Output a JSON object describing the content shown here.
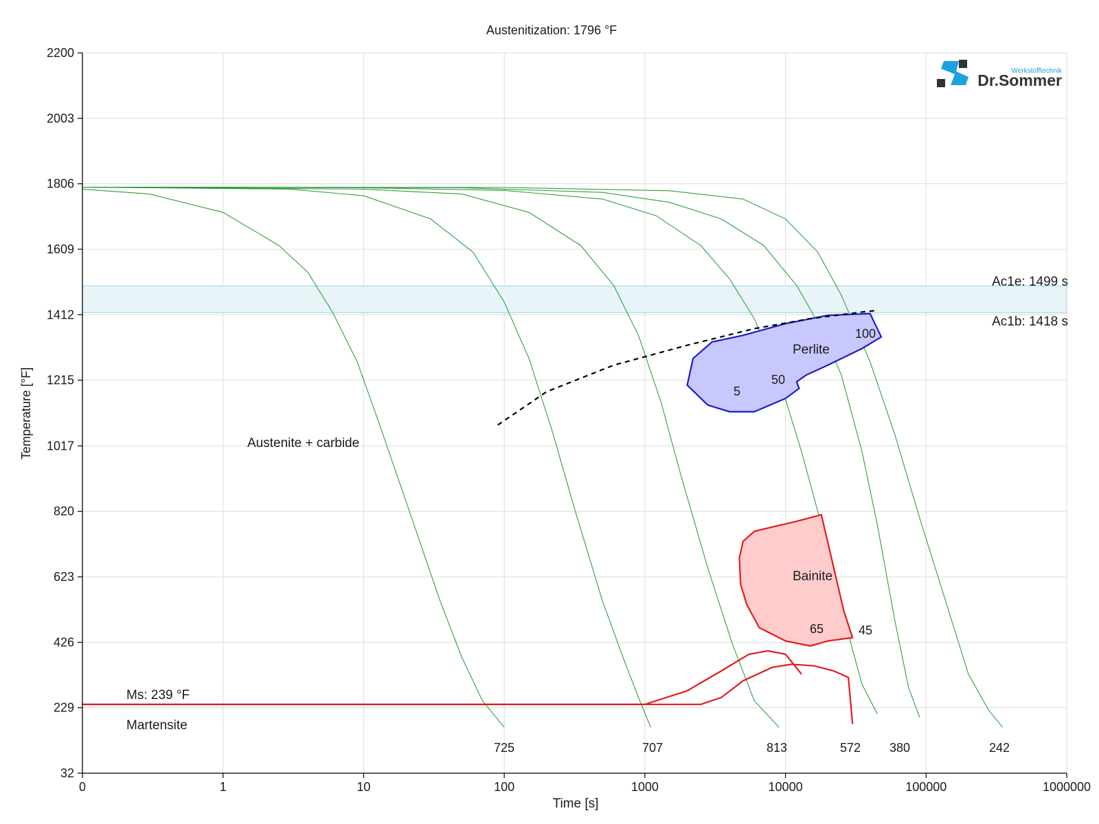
{
  "chart_data": {
    "type": "line",
    "title": "Austenitization: 1796 °F",
    "xlabel": "Time [s]",
    "ylabel": "Temperature [°F]",
    "x_scale": "log",
    "x_ticks": [
      0.1,
      1,
      10,
      100,
      1000,
      10000,
      100000,
      1000000
    ],
    "x_tick_labels": [
      "0",
      "1",
      "10",
      "100",
      "1000",
      "10000",
      "100000",
      "1000000"
    ],
    "y_ticks": [
      32,
      229,
      426,
      623,
      820,
      1017,
      1215,
      1412,
      1609,
      1806,
      2003,
      2200
    ],
    "y_tick_labels": [
      "32",
      "229",
      "426",
      "623",
      "820",
      "1017",
      "1215",
      "1412",
      "1609",
      "1806",
      "2003",
      "2200"
    ],
    "ylim": [
      32,
      2200
    ],
    "grid": true,
    "ac_band": {
      "upper_label": "Ac1e: 1499 s",
      "lower_label": "Ac1b: 1418 s",
      "upper_temp": 1499,
      "lower_temp": 1418,
      "color": "#e8f4f8"
    },
    "ms": {
      "label": "Ms: 239 °F",
      "temp": 239,
      "region_label": "Martensite"
    },
    "region_labels": {
      "austenite": "Austenite + carbide",
      "perlite": "Perlite",
      "bainite": "Bainite"
    },
    "cooling_curves": [
      {
        "end_label": "725",
        "points": [
          [
            0.1,
            1790
          ],
          [
            0.3,
            1775
          ],
          [
            1,
            1720
          ],
          [
            2.5,
            1620
          ],
          [
            4,
            1540
          ],
          [
            6,
            1420
          ],
          [
            9,
            1270
          ],
          [
            13,
            1080
          ],
          [
            20,
            850
          ],
          [
            35,
            550
          ],
          [
            50,
            380
          ],
          [
            70,
            250
          ],
          [
            100,
            170
          ]
        ]
      },
      {
        "end_label": "707",
        "points": [
          [
            0.1,
            1796
          ],
          [
            3,
            1790
          ],
          [
            10,
            1770
          ],
          [
            30,
            1700
          ],
          [
            60,
            1600
          ],
          [
            100,
            1450
          ],
          [
            150,
            1280
          ],
          [
            220,
            1060
          ],
          [
            320,
            820
          ],
          [
            500,
            550
          ],
          [
            700,
            380
          ],
          [
            900,
            260
          ],
          [
            1100,
            170
          ]
        ]
      },
      {
        "end_label": "813",
        "points": [
          [
            0.1,
            1796
          ],
          [
            10,
            1790
          ],
          [
            50,
            1775
          ],
          [
            150,
            1720
          ],
          [
            350,
            1620
          ],
          [
            600,
            1500
          ],
          [
            900,
            1350
          ],
          [
            1300,
            1150
          ],
          [
            1800,
            930
          ],
          [
            2800,
            650
          ],
          [
            4200,
            420
          ],
          [
            6000,
            250
          ],
          [
            9000,
            170
          ]
        ]
      },
      {
        "end_label": "572",
        "points": [
          [
            0.1,
            1796
          ],
          [
            10,
            1794
          ],
          [
            100,
            1786
          ],
          [
            500,
            1760
          ],
          [
            1200,
            1710
          ],
          [
            2500,
            1620
          ],
          [
            4000,
            1520
          ],
          [
            6000,
            1400
          ],
          [
            9000,
            1220
          ],
          [
            13000,
            1000
          ],
          [
            18000,
            780
          ],
          [
            26000,
            500
          ],
          [
            35000,
            300
          ],
          [
            45000,
            210
          ]
        ]
      },
      {
        "end_label": "380",
        "points": [
          [
            0.1,
            1796
          ],
          [
            50,
            1794
          ],
          [
            500,
            1780
          ],
          [
            1500,
            1750
          ],
          [
            3500,
            1700
          ],
          [
            7000,
            1620
          ],
          [
            12000,
            1500
          ],
          [
            18000,
            1370
          ],
          [
            25000,
            1230
          ],
          [
            35000,
            1000
          ],
          [
            45000,
            780
          ],
          [
            60000,
            490
          ],
          [
            75000,
            290
          ],
          [
            90000,
            200
          ]
        ]
      },
      {
        "end_label": "242",
        "points": [
          [
            0.1,
            1796
          ],
          [
            100,
            1795
          ],
          [
            1500,
            1785
          ],
          [
            5000,
            1760
          ],
          [
            10000,
            1700
          ],
          [
            17000,
            1600
          ],
          [
            25000,
            1470
          ],
          [
            40000,
            1270
          ],
          [
            60000,
            1050
          ],
          [
            90000,
            800
          ],
          [
            140000,
            540
          ],
          [
            200000,
            330
          ],
          [
            280000,
            220
          ],
          [
            350000,
            170
          ]
        ]
      }
    ],
    "ac_curve": {
      "style": "dashed",
      "points": [
        [
          90,
          1080
        ],
        [
          200,
          1180
        ],
        [
          600,
          1260
        ],
        [
          2000,
          1320
        ],
        [
          6000,
          1370
        ],
        [
          15000,
          1400
        ],
        [
          35000,
          1420
        ],
        [
          45000,
          1425
        ]
      ]
    },
    "perlite_region": {
      "label_values": [
        "5",
        "50",
        "100"
      ],
      "color": "#c8c8ff",
      "stroke": "#1a1ad0",
      "points": [
        [
          2000,
          1200
        ],
        [
          2200,
          1280
        ],
        [
          3000,
          1330
        ],
        [
          5000,
          1350
        ],
        [
          10000,
          1385
        ],
        [
          20000,
          1410
        ],
        [
          40000,
          1415
        ],
        [
          48000,
          1345
        ],
        [
          35000,
          1310
        ],
        [
          20000,
          1260
        ],
        [
          14000,
          1230
        ],
        [
          12000,
          1210
        ],
        [
          12500,
          1190
        ],
        [
          10000,
          1160
        ],
        [
          6000,
          1120
        ],
        [
          4000,
          1120
        ],
        [
          2800,
          1140
        ]
      ]
    },
    "bainite_region": {
      "label_values": [
        "65",
        "45"
      ],
      "color": "#ffcccc",
      "stroke": "#e41a1a",
      "points": [
        [
          7500,
          770
        ],
        [
          12000,
          790
        ],
        [
          18000,
          810
        ],
        [
          26000,
          520
        ],
        [
          30000,
          440
        ],
        [
          20000,
          430
        ],
        [
          15000,
          415
        ],
        [
          10000,
          430
        ],
        [
          6500,
          470
        ],
        [
          5300,
          540
        ],
        [
          4800,
          600
        ],
        [
          4700,
          680
        ],
        [
          5000,
          730
        ],
        [
          6000,
          760
        ]
      ]
    },
    "martensite_curves": [
      {
        "points": [
          [
            0.1,
            239
          ],
          [
            1000,
            239
          ],
          [
            2000,
            280
          ],
          [
            3500,
            340
          ],
          [
            5500,
            390
          ],
          [
            7500,
            400
          ],
          [
            10000,
            390
          ],
          [
            13000,
            330
          ]
        ]
      },
      {
        "points": [
          [
            0.1,
            239
          ],
          [
            1000,
            239
          ],
          [
            2500,
            239
          ],
          [
            3500,
            260
          ],
          [
            5000,
            310
          ],
          [
            8000,
            350
          ],
          [
            11000,
            360
          ],
          [
            16000,
            355
          ],
          [
            22000,
            340
          ],
          [
            28000,
            320
          ],
          [
            30000,
            180
          ]
        ]
      }
    ]
  },
  "logo": {
    "small": "Werkstofftechnik",
    "brand": "Dr.Sommer"
  }
}
